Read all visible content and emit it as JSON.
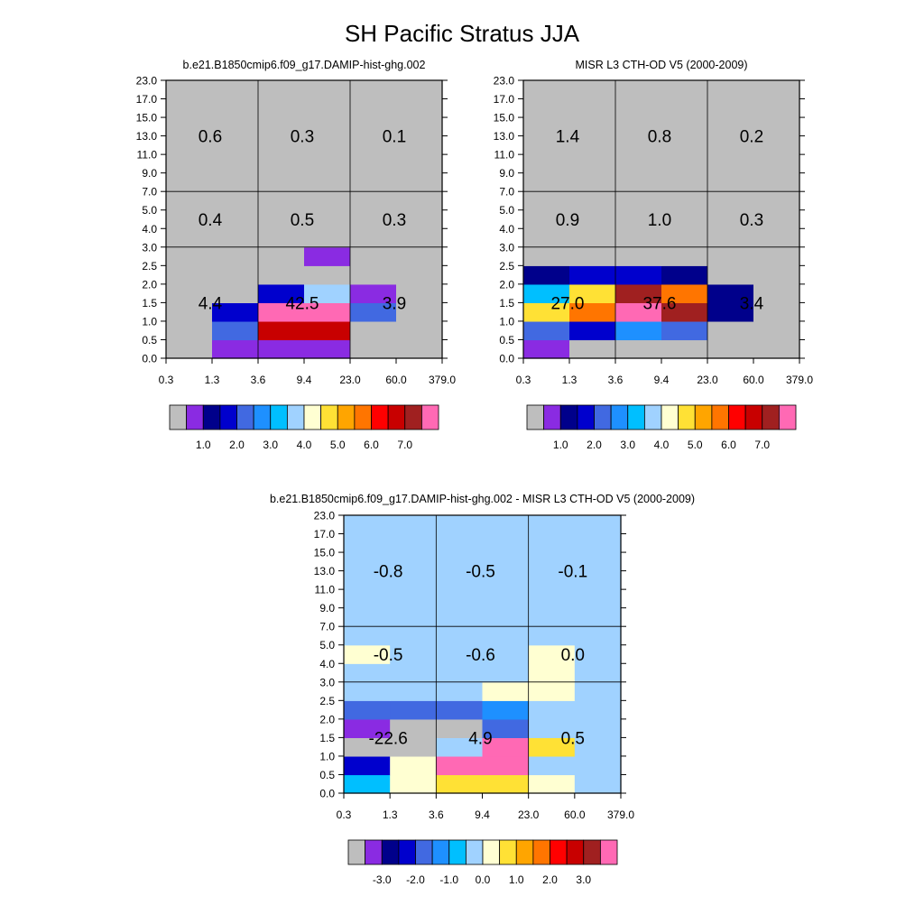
{
  "figure": {
    "title": "SH Pacific Stratus JJA"
  },
  "chart_data": [
    {
      "type": "heatmap",
      "title": "b.e21.B1850cmip6.f09_g17.DAMIP-hist-ghg.002",
      "xlabel": "",
      "ylabel": "",
      "x_ticks": [
        "0.3",
        "1.3",
        "3.6",
        "9.4",
        "23.0",
        "60.0",
        "379.0"
      ],
      "y_ticks": [
        "0.0",
        "0.5",
        "1.0",
        "1.5",
        "2.0",
        "2.5",
        "3.0",
        "4.0",
        "5.0",
        "7.0",
        "9.0",
        "11.0",
        "13.0",
        "15.0",
        "17.0",
        "23.0"
      ],
      "cell_color_index": [
        [
          0,
          1,
          1,
          1,
          0,
          0
        ],
        [
          0,
          4,
          13,
          13,
          0,
          0
        ],
        [
          0,
          3,
          15,
          15,
          4,
          0
        ],
        [
          0,
          0,
          3,
          7,
          1,
          0
        ],
        [
          0,
          0,
          0,
          0,
          0,
          0
        ],
        [
          0,
          0,
          0,
          1,
          0,
          0
        ],
        [
          0,
          0,
          0,
          0,
          0,
          0
        ],
        [
          0,
          0,
          0,
          0,
          0,
          0
        ],
        [
          0,
          0,
          0,
          0,
          0,
          0
        ],
        [
          0,
          0,
          0,
          0,
          0,
          0
        ],
        [
          0,
          0,
          0,
          0,
          0,
          0
        ],
        [
          0,
          0,
          0,
          0,
          0,
          0
        ],
        [
          0,
          0,
          0,
          0,
          0,
          0
        ],
        [
          0,
          0,
          0,
          0,
          0,
          0
        ],
        [
          0,
          0,
          0,
          0,
          0,
          0
        ]
      ],
      "group_labels": [
        [
          "4.4",
          "42.5",
          "3.9"
        ],
        [
          "0.4",
          "0.5",
          "0.3"
        ],
        [
          "0.6",
          "0.3",
          "0.1"
        ]
      ],
      "colorbar": {
        "colors": [
          "#bebebe",
          "#8a2be2",
          "#00008b",
          "#0000cd",
          "#4169e1",
          "#1e90ff",
          "#00bfff",
          "#a0d2ff",
          "#ffffd2",
          "#ffe135",
          "#ffa500",
          "#ff7500",
          "#ff0000",
          "#c80000",
          "#a02020",
          "#ff69b4"
        ],
        "labels": [
          "1.0",
          "2.0",
          "3.0",
          "4.0",
          "5.0",
          "6.0",
          "7.0"
        ]
      }
    },
    {
      "type": "heatmap",
      "title": "MISR L3 CTH-OD V5 (2000-2009)",
      "xlabel": "",
      "ylabel": "",
      "x_ticks": [
        "0.3",
        "1.3",
        "3.6",
        "9.4",
        "23.0",
        "60.0",
        "379.0"
      ],
      "y_ticks": [
        "0.0",
        "0.5",
        "1.0",
        "1.5",
        "2.0",
        "2.5",
        "3.0",
        "4.0",
        "5.0",
        "7.0",
        "9.0",
        "11.0",
        "13.0",
        "15.0",
        "17.0",
        "23.0"
      ],
      "cell_color_index": [
        [
          1,
          0,
          0,
          0,
          0,
          0
        ],
        [
          4,
          3,
          5,
          4,
          0,
          0
        ],
        [
          9,
          11,
          15,
          14,
          2,
          0
        ],
        [
          6,
          9,
          14,
          11,
          2,
          0
        ],
        [
          2,
          3,
          3,
          2,
          0,
          0
        ],
        [
          0,
          0,
          0,
          0,
          0,
          0
        ],
        [
          0,
          0,
          0,
          0,
          0,
          0
        ],
        [
          0,
          0,
          0,
          0,
          0,
          0
        ],
        [
          0,
          0,
          0,
          0,
          0,
          0
        ],
        [
          0,
          0,
          0,
          0,
          0,
          0
        ],
        [
          0,
          0,
          0,
          0,
          0,
          0
        ],
        [
          0,
          0,
          0,
          0,
          0,
          0
        ],
        [
          0,
          0,
          0,
          0,
          0,
          0
        ],
        [
          0,
          0,
          0,
          0,
          0,
          0
        ],
        [
          0,
          0,
          0,
          0,
          0,
          0
        ]
      ],
      "group_labels": [
        [
          "27.0",
          "37.6",
          "3.4"
        ],
        [
          "0.9",
          "1.0",
          "0.3"
        ],
        [
          "1.4",
          "0.8",
          "0.2"
        ]
      ],
      "colorbar": {
        "colors": [
          "#bebebe",
          "#8a2be2",
          "#00008b",
          "#0000cd",
          "#4169e1",
          "#1e90ff",
          "#00bfff",
          "#a0d2ff",
          "#ffffd2",
          "#ffe135",
          "#ffa500",
          "#ff7500",
          "#ff0000",
          "#c80000",
          "#a02020",
          "#ff69b4"
        ],
        "labels": [
          "1.0",
          "2.0",
          "3.0",
          "4.0",
          "5.0",
          "6.0",
          "7.0"
        ]
      }
    },
    {
      "type": "heatmap",
      "title": "b.e21.B1850cmip6.f09_g17.DAMIP-hist-ghg.002 - MISR L3 CTH-OD V5 (2000-2009)",
      "xlabel": "",
      "ylabel": "",
      "x_ticks": [
        "0.3",
        "1.3",
        "3.6",
        "9.4",
        "23.0",
        "60.0",
        "379.0"
      ],
      "y_ticks": [
        "0.0",
        "0.5",
        "1.0",
        "1.5",
        "2.0",
        "2.5",
        "3.0",
        "4.0",
        "5.0",
        "7.0",
        "9.0",
        "11.0",
        "13.0",
        "15.0",
        "17.0",
        "23.0"
      ],
      "cell_color_index": [
        [
          6,
          8,
          9,
          9,
          8,
          7
        ],
        [
          3,
          8,
          15,
          15,
          7,
          7
        ],
        [
          0,
          0,
          7,
          15,
          9,
          7
        ],
        [
          1,
          0,
          0,
          4,
          7,
          7
        ],
        [
          4,
          4,
          4,
          5,
          7,
          7
        ],
        [
          7,
          7,
          7,
          8,
          8,
          7
        ],
        [
          7,
          7,
          7,
          7,
          8,
          7
        ],
        [
          8,
          7,
          7,
          7,
          8,
          7
        ],
        [
          7,
          7,
          7,
          7,
          7,
          7
        ],
        [
          7,
          7,
          7,
          7,
          7,
          7
        ],
        [
          7,
          7,
          7,
          7,
          7,
          7
        ],
        [
          7,
          7,
          7,
          7,
          7,
          7
        ],
        [
          7,
          7,
          7,
          7,
          7,
          7
        ],
        [
          7,
          7,
          7,
          7,
          7,
          7
        ],
        [
          7,
          7,
          7,
          7,
          7,
          7
        ]
      ],
      "group_labels": [
        [
          "-22.6",
          "4.9",
          "0.5"
        ],
        [
          "-0.5",
          "-0.6",
          "0.0"
        ],
        [
          "-0.8",
          "-0.5",
          "-0.1"
        ]
      ],
      "colorbar": {
        "colors": [
          "#bebebe",
          "#8a2be2",
          "#00008b",
          "#0000cd",
          "#4169e1",
          "#1e90ff",
          "#00bfff",
          "#a0d2ff",
          "#ffffd2",
          "#ffe135",
          "#ffa500",
          "#ff7500",
          "#ff0000",
          "#c80000",
          "#a02020",
          "#ff69b4"
        ],
        "labels": [
          "-3.0",
          "-2.0",
          "-1.0",
          "0.0",
          "1.0",
          "2.0",
          "3.0"
        ]
      }
    }
  ]
}
